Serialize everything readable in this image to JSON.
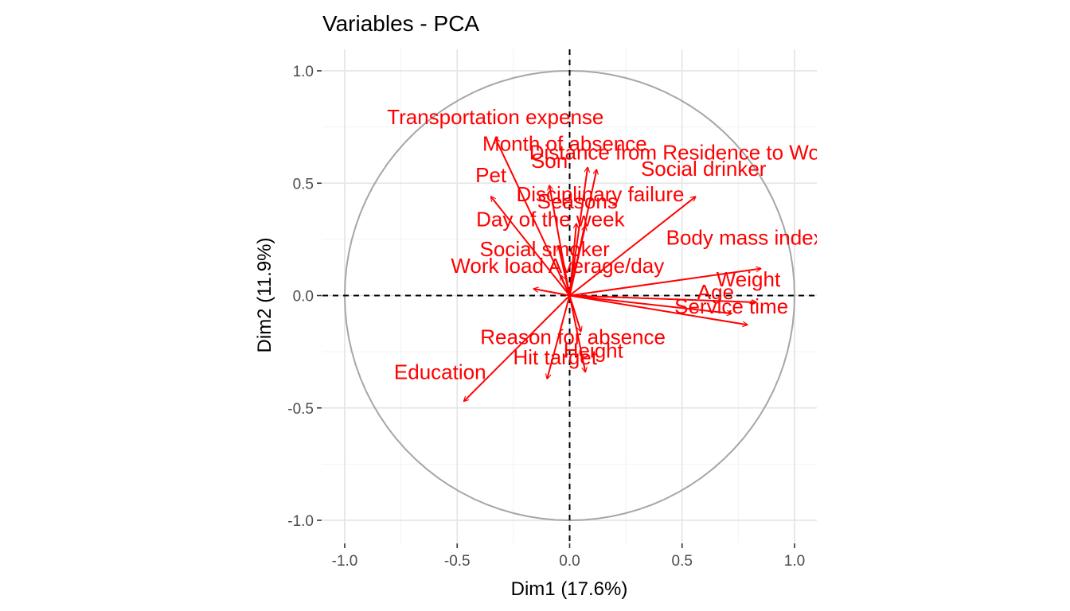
{
  "chart_data": {
    "type": "scatter",
    "subtype": "pca-variable-correlation-circle",
    "title": "Variables - PCA",
    "xlabel": "Dim1 (17.6%)",
    "ylabel": "Dim2 (11.9%)",
    "xlim": [
      -1.0,
      1.0
    ],
    "ylim": [
      -1.0,
      1.0
    ],
    "x_ticks": [
      "-1.0",
      "-0.5",
      "0.0",
      "0.5",
      "1.0"
    ],
    "y_ticks": [
      "1.0",
      "0.5",
      "0.0",
      "-0.5",
      "-1.0"
    ],
    "grid": true,
    "unit_circle": true,
    "colors": {
      "arrow": "#ff0000",
      "circle": "#a6a6a6",
      "grid_major": "#e6e6e6",
      "grid_minor": "#f2f2f2",
      "reference_line": "#000000"
    },
    "variables": [
      {
        "name": "Transportation expense",
        "x": -0.33,
        "y": 0.7
      },
      {
        "name": "Distance from Residence to Work",
        "x": 0.08,
        "y": 0.57
      },
      {
        "name": "Son",
        "x": -0.09,
        "y": 0.49
      },
      {
        "name": "Pet",
        "x": -0.35,
        "y": 0.44
      },
      {
        "name": "Month of absence",
        "x": 0.12,
        "y": 0.56
      },
      {
        "name": "Social drinker",
        "x": 0.56,
        "y": 0.44
      },
      {
        "name": "Disciplinary failure",
        "x": 0.03,
        "y": 0.32
      },
      {
        "name": "Seasons",
        "x": 0.07,
        "y": 0.31
      },
      {
        "name": "Day of the week",
        "x": -0.05,
        "y": 0.22
      },
      {
        "name": "Social smoker",
        "x": -0.04,
        "y": 0.09
      },
      {
        "name": "Work load Average/day",
        "x": -0.16,
        "y": 0.03
      },
      {
        "name": "Body mass index",
        "x": 0.85,
        "y": 0.12
      },
      {
        "name": "Weight",
        "x": 0.83,
        "y": -0.03
      },
      {
        "name": "Age",
        "x": 0.72,
        "y": -0.08
      },
      {
        "name": "Service time",
        "x": 0.79,
        "y": -0.13
      },
      {
        "name": "Reason for absence",
        "x": 0.05,
        "y": -0.16
      },
      {
        "name": "Hit target",
        "x": -0.1,
        "y": -0.37
      },
      {
        "name": "Height",
        "x": 0.07,
        "y": -0.34
      },
      {
        "name": "Education",
        "x": -0.47,
        "y": -0.47
      }
    ]
  }
}
